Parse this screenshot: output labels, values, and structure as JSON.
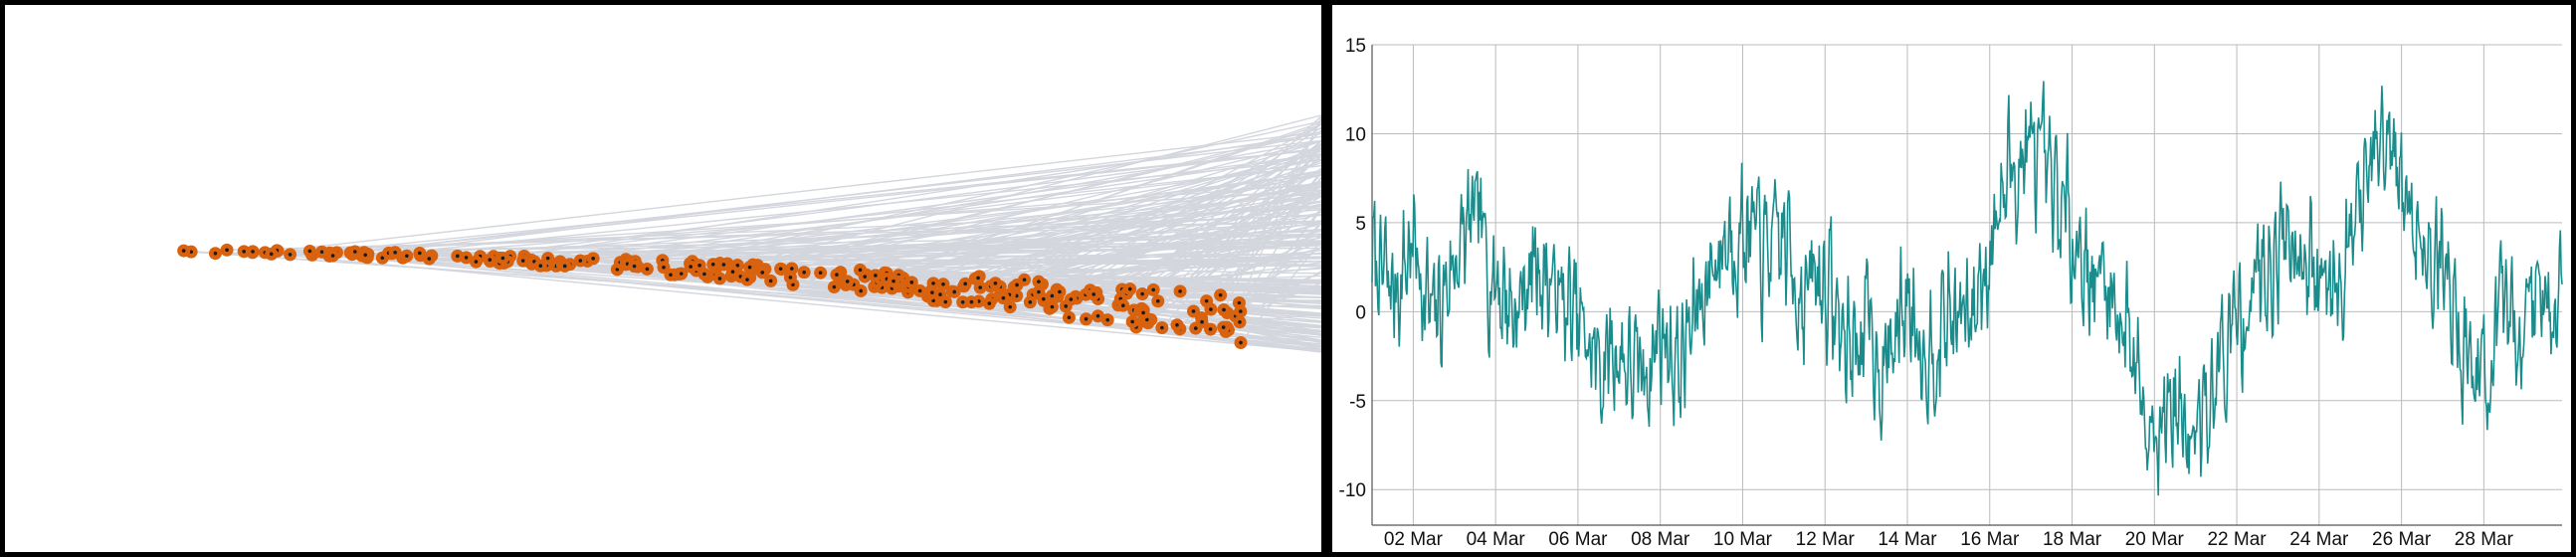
{
  "colors": {
    "background": "#ffffff",
    "frame": "#000000",
    "links": "#d4d6de",
    "node_fill": "#d9620f",
    "node_center": "#1a1a1a",
    "series_line": "#1a8c8c",
    "grid": "#bbbbbb"
  },
  "chart_data": [
    {
      "type": "scatter",
      "title": "",
      "description": "Horizontal network/embedding-style plot: orange nodes along a slowly descending band, with many grey link lines fanning out to the right edge.",
      "node_count": 260,
      "x_extent": [
        0,
        1
      ],
      "band": {
        "start_y": 0,
        "end_y": -1
      },
      "grid": false
    },
    {
      "type": "line",
      "title": "",
      "xlabel": "",
      "ylabel": "",
      "x_start": "01 Mar",
      "x_end": "29 Mar",
      "x_tick_labels": [
        "02 Mar",
        "04 Mar",
        "06 Mar",
        "08 Mar",
        "10 Mar",
        "12 Mar",
        "14 Mar",
        "16 Mar",
        "18 Mar",
        "20 Mar",
        "22 Mar",
        "24 Mar",
        "26 Mar",
        "28 Mar"
      ],
      "y_tick_labels": [
        "15",
        "10",
        "5",
        "0",
        "-5",
        "-10"
      ],
      "ylim": [
        -12,
        15
      ],
      "grid": true,
      "series": [
        {
          "color": "#1a8c8c",
          "days": [
            1.0,
            1.5,
            2.0,
            2.5,
            3.0,
            3.5,
            4.0,
            4.5,
            5.0,
            5.5,
            6.0,
            6.5,
            7.0,
            7.5,
            8.0,
            8.5,
            9.0,
            9.5,
            10.0,
            10.5,
            11.0,
            11.5,
            12.0,
            12.5,
            13.0,
            13.5,
            14.0,
            14.5,
            15.0,
            15.5,
            16.0,
            16.5,
            17.0,
            17.5,
            18.0,
            18.5,
            19.0,
            19.5,
            20.0,
            20.5,
            21.0,
            21.5,
            22.0,
            22.5,
            23.0,
            23.5,
            24.0,
            24.5,
            25.0,
            25.5,
            26.0,
            26.5,
            27.0,
            27.5,
            28.0,
            28.5,
            29.0,
            29.5
          ],
          "values": [
            3,
            1,
            4,
            -1,
            3,
            5,
            2,
            0,
            3,
            1,
            -1,
            -3,
            -2,
            -4,
            -1,
            -3,
            1,
            4,
            5,
            3,
            4,
            1,
            2,
            -2,
            -1,
            -3,
            1,
            -2,
            0,
            -1,
            4,
            8,
            9,
            6,
            5,
            2,
            1,
            -2,
            -6,
            -5,
            -8,
            -3,
            -1,
            2,
            4,
            5,
            1,
            3,
            6,
            9,
            7,
            4,
            3,
            -2,
            -4,
            -1,
            0,
            1
          ]
        }
      ]
    }
  ]
}
